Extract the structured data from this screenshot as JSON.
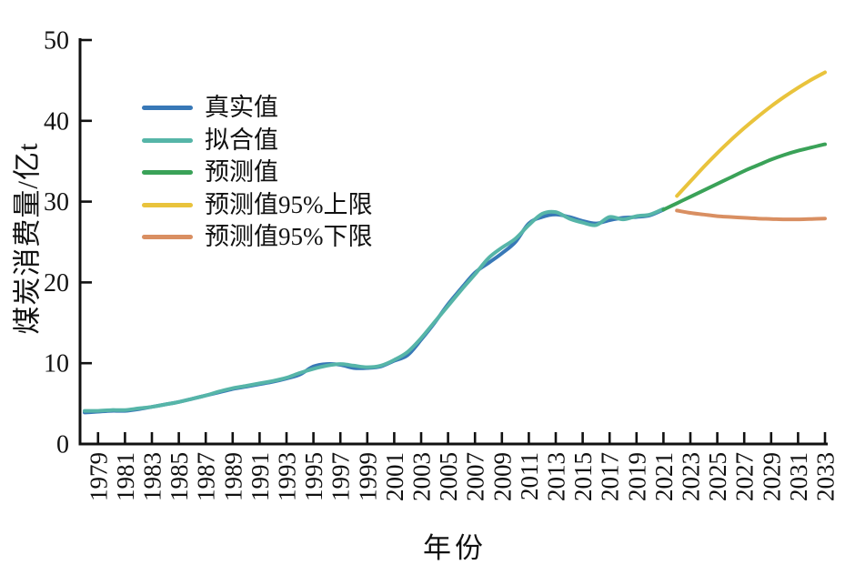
{
  "figure": {
    "x_axis_title": "年份",
    "y_axis_title": "煤炭消费量/亿t"
  },
  "chart_data": {
    "type": "line",
    "title": "",
    "xlabel": "年份",
    "ylabel": "煤炭消费量/亿t",
    "xlim": [
      1978,
      2033
    ],
    "ylim": [
      0,
      50
    ],
    "grid": false,
    "legend_position": "upper-left",
    "y_ticks": [
      0,
      10,
      20,
      30,
      40,
      50
    ],
    "x_tick_labels": [
      1979,
      1981,
      1983,
      1985,
      1987,
      1989,
      1991,
      1993,
      1995,
      1997,
      1999,
      2001,
      2003,
      2005,
      2007,
      2009,
      2011,
      2013,
      2015,
      2017,
      2019,
      2021,
      2023,
      2025,
      2027,
      2029,
      2031,
      2033
    ],
    "series": [
      {
        "key": "actual",
        "name": "真实值",
        "color": "#3878b7",
        "start_year": 1978,
        "values": [
          3.9,
          4.0,
          4.1,
          4.1,
          4.3,
          4.6,
          4.9,
          5.2,
          5.6,
          6.0,
          6.4,
          6.8,
          7.1,
          7.4,
          7.7,
          8.1,
          8.6,
          9.6,
          9.9,
          9.8,
          9.4,
          9.4,
          9.6,
          10.3,
          11.0,
          12.9,
          15.0,
          17.3,
          19.3,
          21.2,
          22.4,
          23.6,
          25.0,
          27.3,
          28.1,
          28.4,
          28.1,
          27.6,
          27.3,
          27.7,
          28.0,
          28.1,
          28.3,
          29.0
        ]
      },
      {
        "key": "fitted",
        "name": "拟合值",
        "color": "#56b5a8",
        "start_year": 1978,
        "values": [
          4.1,
          4.1,
          4.2,
          4.2,
          4.4,
          4.6,
          4.9,
          5.2,
          5.6,
          6.0,
          6.5,
          6.9,
          7.2,
          7.5,
          7.8,
          8.2,
          8.8,
          9.3,
          9.7,
          9.9,
          9.7,
          9.5,
          9.7,
          10.4,
          11.4,
          13.1,
          15.1,
          17.1,
          19.1,
          21.0,
          23.0,
          24.3,
          25.4,
          27.1,
          28.5,
          28.7,
          27.9,
          27.4,
          27.1,
          28.1,
          27.8,
          28.2,
          28.4,
          29.1
        ]
      },
      {
        "key": "predicted",
        "name": "预测值",
        "color": "#3aa258",
        "start_year": 2021,
        "values": [
          29.0,
          29.8,
          30.6,
          31.4,
          32.2,
          33.0,
          33.8,
          34.5,
          35.2,
          35.8,
          36.3,
          36.7,
          37.1
        ]
      },
      {
        "key": "upper-95",
        "name": "预测值95%上限",
        "color": "#e9c33c",
        "start_year": 2022,
        "values": [
          30.7,
          32.5,
          34.3,
          36.0,
          37.6,
          39.1,
          40.5,
          41.8,
          43.0,
          44.1,
          45.1,
          46.0
        ]
      },
      {
        "key": "lower-95",
        "name": "预测值95%下限",
        "color": "#d98f62",
        "start_year": 2022,
        "values": [
          28.9,
          28.6,
          28.4,
          28.2,
          28.1,
          28.0,
          27.9,
          27.85,
          27.8,
          27.8,
          27.85,
          27.9
        ]
      }
    ]
  }
}
